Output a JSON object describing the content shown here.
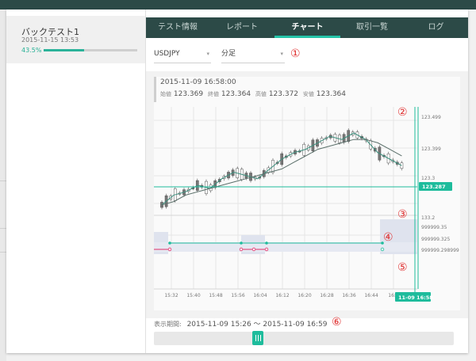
{
  "sidebar": {
    "backtest": {
      "name": "バックテスト1",
      "date": "2015-11-15 13:53",
      "progress_text": "43.5%",
      "progress": 0.435
    }
  },
  "tabs": [
    "テスト情報",
    "レポート",
    "チャート",
    "取引一覧",
    "ログ"
  ],
  "active_tab": "チャート",
  "filters": {
    "symbol": "USDJPY",
    "timeframe": "分足"
  },
  "markers": [
    "①",
    "②",
    "③",
    "④",
    "⑤",
    "⑥"
  ],
  "chart": {
    "datetime": "2015-11-09 16:58:00",
    "ohlc": [
      {
        "label": "始値",
        "value": "123.369"
      },
      {
        "label": "終値",
        "value": "123.364"
      },
      {
        "label": "高値",
        "value": "123.372"
      },
      {
        "label": "安値",
        "value": "123.364"
      }
    ],
    "price_ticks": [
      "123.499",
      "123.399",
      "123.3"
    ],
    "current_price": "123.287",
    "indicator_ticks": [
      "133.2",
      "999999.35",
      "999999.325",
      "999999.298999"
    ],
    "time_ticks": [
      "15:32",
      "15:40",
      "15:48",
      "15:56",
      "16:04",
      "16:12",
      "16:20",
      "16:28",
      "16:36",
      "16:44",
      "16:5"
    ],
    "cursor_time": "11-09 16:58"
  },
  "period": {
    "label": "表示期間:",
    "value": "2015-11-09 15:26 〜 2015-11-09 16:59"
  },
  "colors": {
    "header": "#2c4a47",
    "accent": "#1ebc9c",
    "marker": "#e03030",
    "pink": "#e0306a"
  },
  "chart_data": {
    "type": "line",
    "series": [
      {
        "values": [
          123.22,
          123.25,
          123.26,
          123.28,
          123.27,
          123.3,
          123.32,
          123.31,
          123.3,
          123.33,
          123.36,
          123.38,
          123.39,
          123.41,
          123.43,
          123.42,
          123.44,
          123.42,
          123.38,
          123.36,
          123.34
        ]
      },
      {
        "values": [
          123.22,
          123.23,
          123.25,
          123.26,
          123.27,
          123.28,
          123.29,
          123.3,
          123.31,
          123.32,
          123.33,
          123.35,
          123.37,
          123.39,
          123.4,
          123.41,
          123.42,
          123.42,
          123.41,
          123.39,
          123.37
        ]
      }
    ],
    "ylim": [
      123.2,
      123.52
    ]
  }
}
